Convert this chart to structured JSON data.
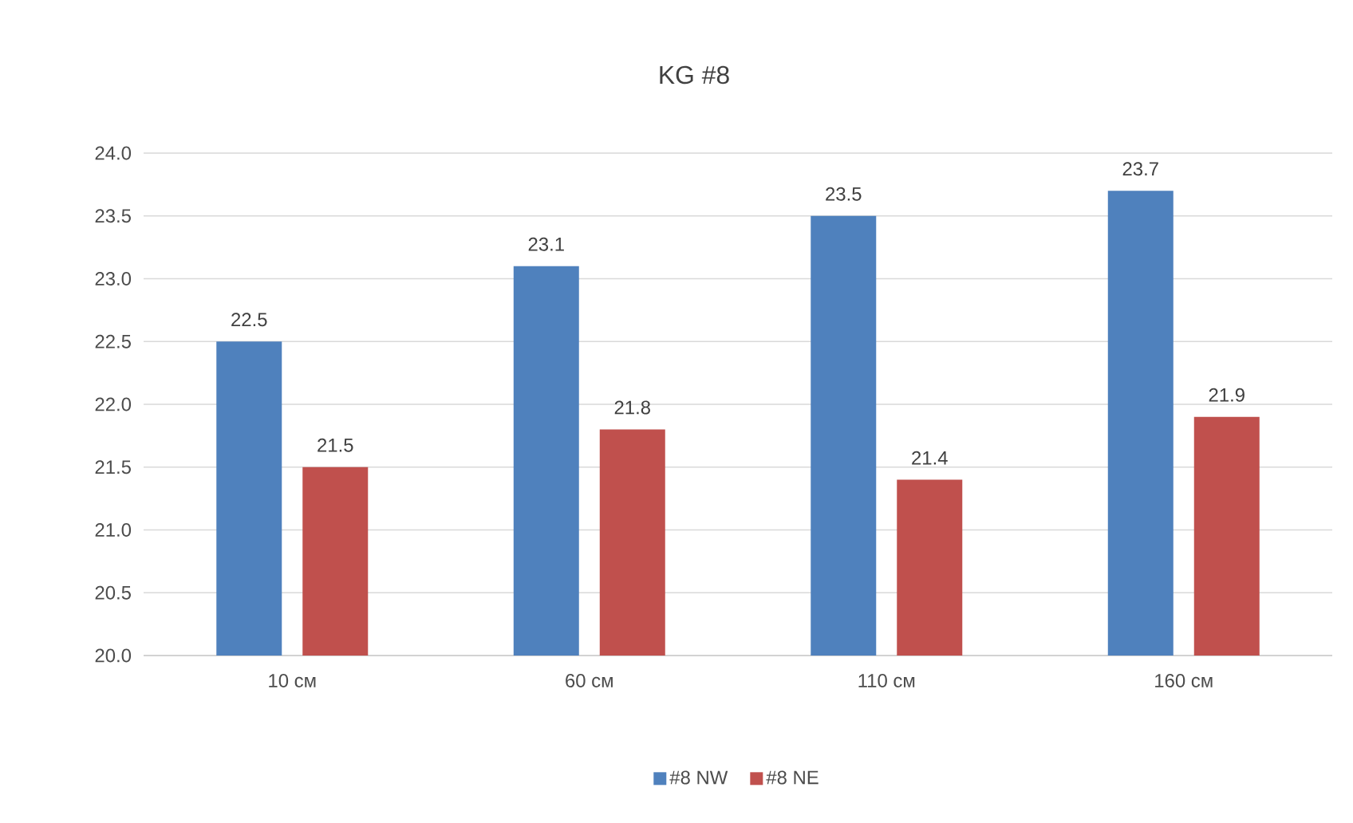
{
  "chart_data": {
    "type": "bar",
    "title": "KG #8",
    "categories": [
      "10 см",
      "60 см",
      "110 см",
      "160 см"
    ],
    "series": [
      {
        "name": "#8 NW",
        "color": "#4f81bd",
        "values": [
          22.5,
          23.1,
          23.5,
          23.7
        ]
      },
      {
        "name": "#8 NE",
        "color": "#c0504d",
        "values": [
          21.5,
          21.8,
          21.4,
          21.9
        ]
      }
    ],
    "ylim": [
      20,
      24
    ],
    "yticks": [
      {
        "value": 20,
        "label": "20.0"
      },
      {
        "value": 20.5,
        "label": "20.5"
      },
      {
        "value": 21,
        "label": "21.0"
      },
      {
        "value": 21.5,
        "label": "21.5"
      },
      {
        "value": 22,
        "label": "22.0"
      },
      {
        "value": 22.5,
        "label": "22.5"
      },
      {
        "value": 23,
        "label": "23.0"
      },
      {
        "value": 23.5,
        "label": "23.5"
      },
      {
        "value": 24,
        "label": "24.0"
      }
    ],
    "grid": "y",
    "legend": "bottom",
    "data_labels": true
  }
}
